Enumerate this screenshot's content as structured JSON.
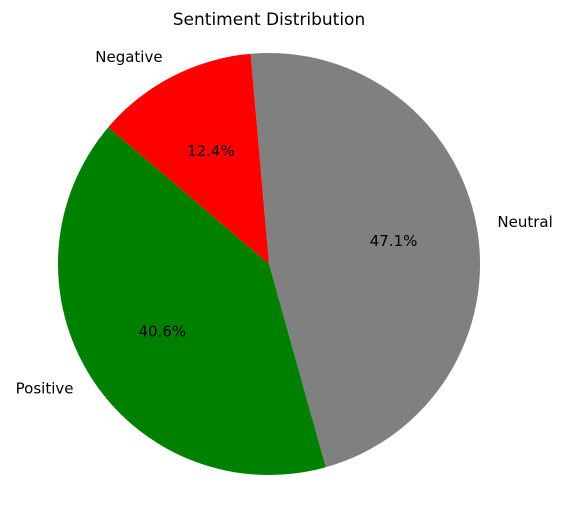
{
  "chart_data": {
    "type": "pie",
    "title": "Sentiment Distribution",
    "slices": [
      {
        "label": "Neutral",
        "value": 47.1,
        "pct_label": "47.1%",
        "color": "#808080"
      },
      {
        "label": "Positive",
        "value": 40.6,
        "pct_label": "40.6%",
        "color": "#008000"
      },
      {
        "label": "Negative",
        "value": 12.4,
        "pct_label": "12.4%",
        "color": "#ff0000"
      }
    ],
    "start_angle_deg": 95,
    "direction": "clockwise",
    "legend": "none"
  }
}
